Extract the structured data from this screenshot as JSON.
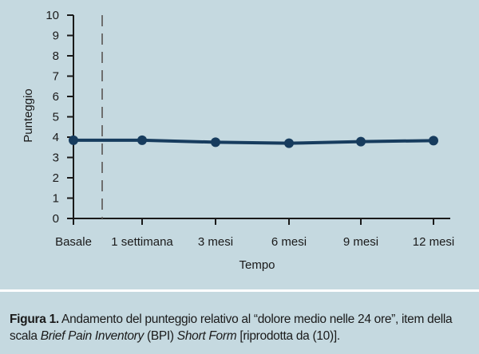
{
  "chart_data": {
    "type": "line",
    "categories": [
      "Basale",
      "1 settimana",
      "3 mesi",
      "6 mesi",
      "9 mesi",
      "12 mesi"
    ],
    "series": [
      {
        "values": [
          3.85,
          3.85,
          3.75,
          3.7,
          3.78,
          3.83
        ]
      }
    ],
    "xlabel": "Tempo",
    "ylabel": "Punteggio",
    "ylim": [
      0,
      10
    ],
    "yticks": [
      0,
      1,
      2,
      3,
      4,
      5,
      6,
      7,
      8,
      9,
      10
    ],
    "reference_line": {
      "type": "vertical-dashed",
      "between": [
        "Basale",
        "1 settimana"
      ]
    },
    "grid": false,
    "line_color": "#173c5e"
  },
  "caption": {
    "label": "Figura 1.",
    "text_1": " Andamento del punteggio relativo al “dolore medio nelle 24 ore”, item della scala ",
    "italic_1": "Brief Pain Inventory",
    "text_2": " (BPI) ",
    "italic_2": "Short Form",
    "text_3": " [riprodotta da (10)]."
  }
}
